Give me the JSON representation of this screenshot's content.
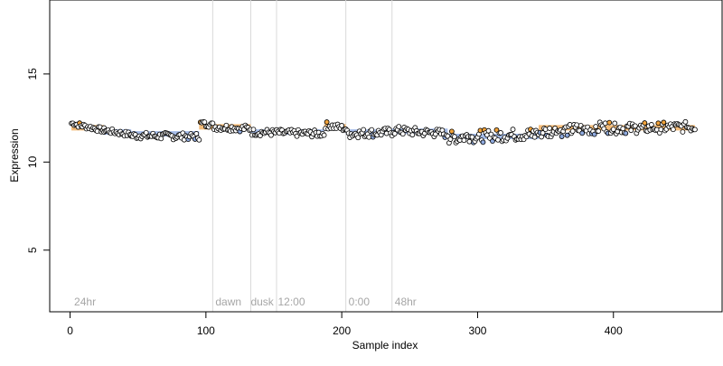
{
  "chart_data": {
    "type": "scatter",
    "title": "",
    "xlabel": "Sample index",
    "ylabel": "Expression",
    "xlim": [
      -15,
      480
    ],
    "ylim": [
      1.5,
      19.2
    ],
    "x_ticks": [
      0,
      100,
      200,
      300,
      400
    ],
    "y_ticks": [
      5,
      10,
      15
    ],
    "grid": false,
    "colors": {
      "points_fill": "#ffffff",
      "points_stroke": "#000000",
      "high_fill": "#f2a33a",
      "low_fill": "#8ea9dd",
      "baseline_orange": "#f2b56b",
      "baseline_blue": "#9bb5e6",
      "divider": "#d9d9d9",
      "region_label": "#a6a6a6"
    },
    "dividers": [
      105,
      133,
      152,
      203,
      237
    ],
    "region_labels": [
      {
        "label": "24hr",
        "x": 3
      },
      {
        "label": "dawn",
        "x": 107
      },
      {
        "label": "dusk",
        "x": 133
      },
      {
        "label": "12:00",
        "x": 153
      },
      {
        "label": "0:00",
        "x": 205
      },
      {
        "label": "48hr",
        "x": 239
      }
    ],
    "baselines": [
      {
        "x_start": 1,
        "x_end": 25,
        "y": 11.95,
        "color": "orange"
      },
      {
        "x_start": 25,
        "x_end": 45,
        "y": 11.7,
        "color": "blue"
      },
      {
        "x_start": 45,
        "x_end": 95,
        "y": 11.6,
        "color": "blue"
      },
      {
        "x_start": 95,
        "x_end": 105,
        "y": 12.0,
        "color": "orange"
      },
      {
        "x_start": 105,
        "x_end": 133,
        "y": 12.0,
        "color": "orange"
      },
      {
        "x_start": 133,
        "x_end": 187,
        "y": 11.7,
        "color": "blue"
      },
      {
        "x_start": 187,
        "x_end": 203,
        "y": 12.0,
        "color": "orange"
      },
      {
        "x_start": 203,
        "x_end": 237,
        "y": 11.7,
        "color": "blue"
      },
      {
        "x_start": 237,
        "x_end": 278,
        "y": 11.75,
        "color": "blue"
      },
      {
        "x_start": 278,
        "x_end": 345,
        "y": 11.45,
        "color": "blue"
      },
      {
        "x_start": 345,
        "x_end": 400,
        "y": 11.95,
        "color": "orange"
      },
      {
        "x_start": 400,
        "x_end": 460,
        "y": 11.95,
        "color": "orange"
      }
    ],
    "segments": [
      {
        "x_start": 1,
        "x_end": 25,
        "y_start": 12.2,
        "y_end": 11.8,
        "noise": 0.15
      },
      {
        "x_start": 25,
        "x_end": 45,
        "y_start": 11.8,
        "y_end": 11.55,
        "noise": 0.15
      },
      {
        "x_start": 45,
        "x_end": 95,
        "y_start": 11.5,
        "y_end": 11.45,
        "noise": 0.2
      },
      {
        "x_start": 96,
        "x_end": 105,
        "y_start": 12.2,
        "y_end": 12.1,
        "noise": 0.15
      },
      {
        "x_start": 106,
        "x_end": 133,
        "y_start": 12.0,
        "y_end": 11.9,
        "noise": 0.2
      },
      {
        "x_start": 134,
        "x_end": 187,
        "y_start": 11.7,
        "y_end": 11.6,
        "noise": 0.2
      },
      {
        "x_start": 188,
        "x_end": 203,
        "y_start": 12.1,
        "y_end": 11.9,
        "noise": 0.2
      },
      {
        "x_start": 204,
        "x_end": 237,
        "y_start": 11.6,
        "y_end": 11.7,
        "noise": 0.25
      },
      {
        "x_start": 238,
        "x_end": 278,
        "y_start": 11.8,
        "y_end": 11.6,
        "noise": 0.25
      },
      {
        "x_start": 279,
        "x_end": 345,
        "y_start": 11.4,
        "y_end": 11.6,
        "noise": 0.35
      },
      {
        "x_start": 346,
        "x_end": 400,
        "y_start": 11.7,
        "y_end": 12.0,
        "noise": 0.35
      },
      {
        "x_start": 401,
        "x_end": 460,
        "y_start": 11.9,
        "y_end": 12.0,
        "noise": 0.3
      }
    ]
  }
}
